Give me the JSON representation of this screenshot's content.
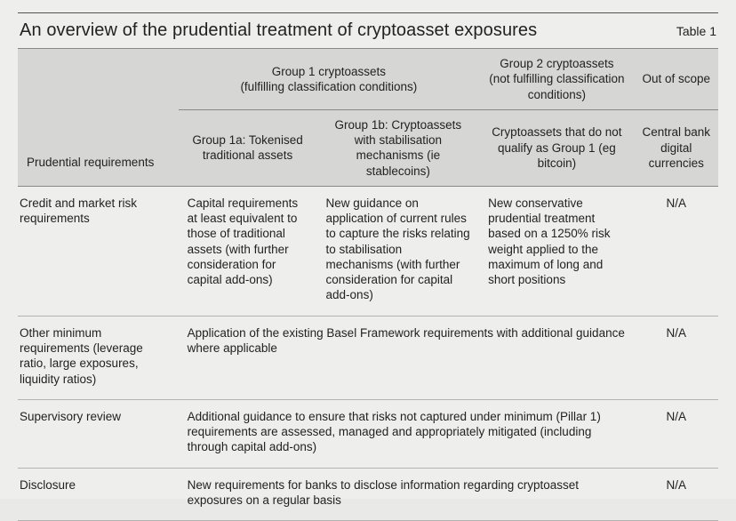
{
  "title": "An overview of the prudential treatment of cryptoasset exposures",
  "table_label": "Table 1",
  "header": {
    "requirements": "Prudential requirements",
    "group1": "Group 1 cryptoassets\n(fulfilling classification conditions)",
    "group2": "Group 2 cryptoassets\n(not fulfilling classification conditions)",
    "out_of_scope": "Out of scope",
    "group1a": "Group 1a: Tokenised traditional assets",
    "group1b": "Group 1b: Cryptoassets with stabilisation mechanisms (ie stablecoins)",
    "group2_sub": "Cryptoassets that do not qualify as Group 1 (eg bitcoin)",
    "oos_sub": "Central bank digital currencies"
  },
  "rows": [
    {
      "req": "Credit and market risk requirements",
      "g1a": "Capital requirements at least equivalent to those of traditional assets (with further consideration for capital add-ons)",
      "g1b": "New guidance on application of current rules to capture the risks relating to stabilisation mechanisms (with further consideration for capital add-ons)",
      "g2": "New conservative prudential treatment based on a 1250% risk weight applied to the maximum of long and short positions",
      "oos": "N/A",
      "span": false
    },
    {
      "req": "Other minimum requirements (leverage ratio, large exposures, liquidity ratios)",
      "g1a": "Application of the existing Basel Framework requirements with additional guidance where applicable",
      "oos": "N/A",
      "span": true
    },
    {
      "req": "Supervisory review",
      "g1a": "Additional guidance to ensure that risks not captured under minimum (Pillar 1) requirements are assessed, managed and appropriately mitigated (including through capital add-ons)",
      "oos": "N/A",
      "span": true
    },
    {
      "req": "Disclosure",
      "g1a": "New requirements for banks to disclose information regarding cryptoasset exposures on a regular basis",
      "oos": "N/A",
      "span": true
    }
  ],
  "colors": {
    "header_bg": "#d6d6d4",
    "page_bg": "#eeeeec",
    "rule": "#555555",
    "row_border": "#b3b3b0",
    "text": "#222222"
  }
}
